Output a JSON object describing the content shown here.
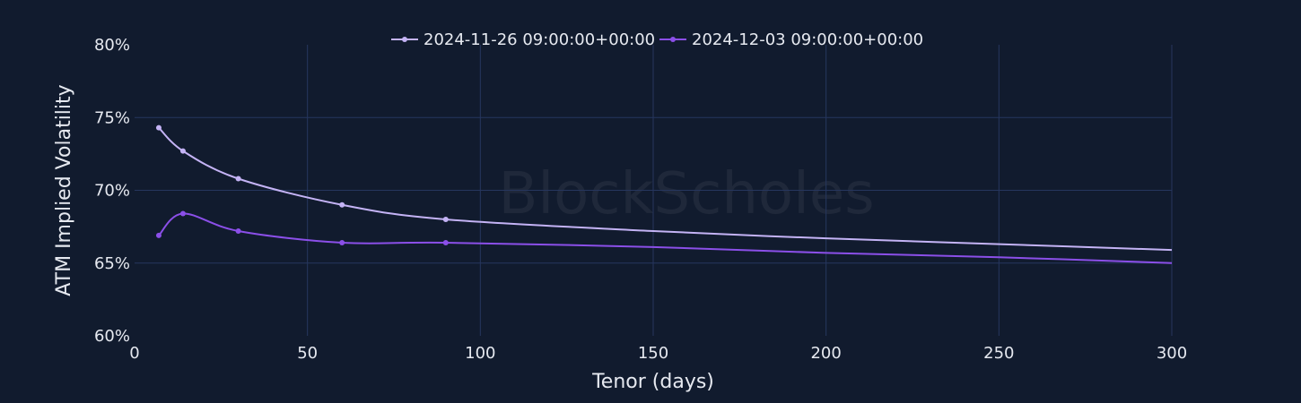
{
  "chart_data": {
    "type": "line",
    "title": "",
    "xlabel": "Tenor (days)",
    "ylabel": "ATM Implied Volatility",
    "xlim": [
      0,
      300
    ],
    "ylim": [
      60,
      80
    ],
    "x_ticks": [
      0,
      50,
      100,
      150,
      200,
      250,
      300
    ],
    "y_ticks": [
      60,
      65,
      70,
      75,
      80
    ],
    "y_tick_suffix": "%",
    "grid": true,
    "legend_position": "top-center",
    "watermark": "BlockScholes",
    "series": [
      {
        "name": "2024-11-26 09:00:00+00:00",
        "color": "#c4b3f5",
        "markers_x": [
          7,
          14,
          30,
          60,
          90
        ],
        "markers_y": [
          74.3,
          72.7,
          70.8,
          69.0,
          68.0
        ],
        "x": [
          7,
          14,
          30,
          60,
          90,
          150,
          200,
          250,
          300
        ],
        "values": [
          74.3,
          72.7,
          70.8,
          69.0,
          68.0,
          67.2,
          66.7,
          66.3,
          65.9
        ]
      },
      {
        "name": "2024-12-03 09:00:00+00:00",
        "color": "#8b4fe8",
        "markers_x": [
          7,
          14,
          30,
          60,
          90
        ],
        "markers_y": [
          66.9,
          68.4,
          67.2,
          66.4,
          66.4
        ],
        "x": [
          7,
          14,
          30,
          60,
          90,
          150,
          200,
          250,
          300
        ],
        "values": [
          66.9,
          68.4,
          67.2,
          66.4,
          66.4,
          66.1,
          65.7,
          65.4,
          65.0
        ]
      }
    ]
  }
}
